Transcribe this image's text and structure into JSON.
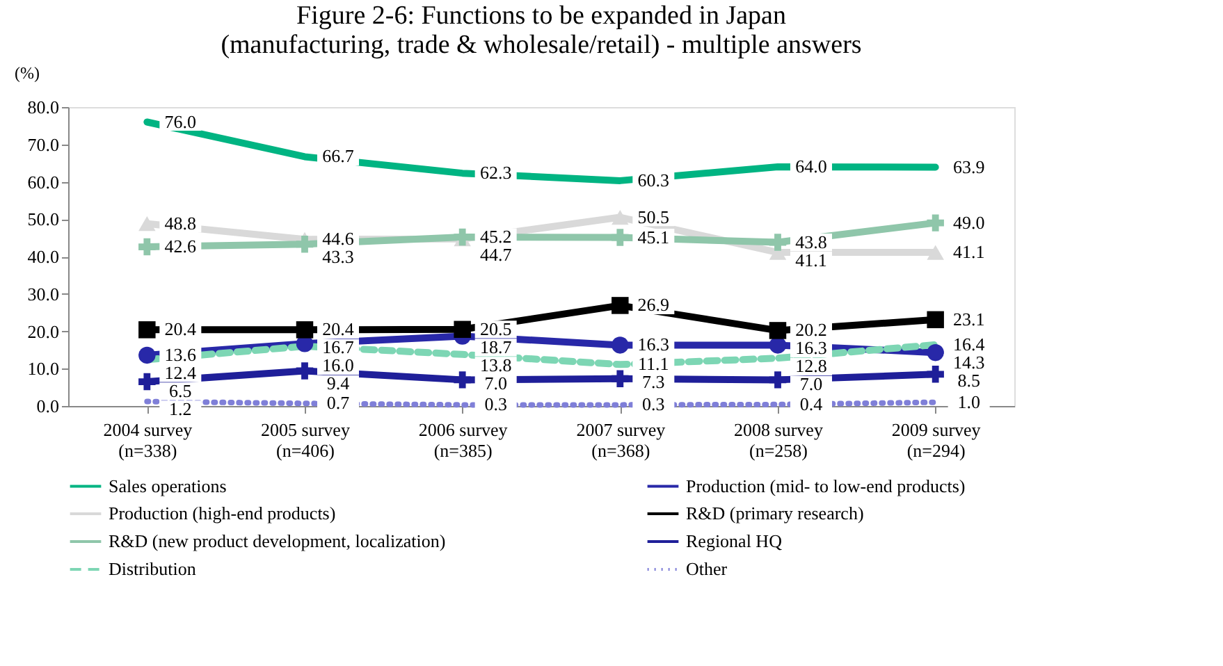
{
  "chart_data": {
    "type": "line",
    "title": [
      "Figure 2-6: Functions to be expanded in Japan",
      "(manufacturing, trade & wholesale/retail) - multiple answers"
    ],
    "ylabel": "(%)",
    "categories": [
      "2004 survey\n(n=338)",
      "2005 survey\n(n=406)",
      "2006 survey\n(n=385)",
      "2007 survey\n(n=368)",
      "2008 survey\n(n=258)",
      "2009 survey\n(n=294)"
    ],
    "series": [
      {
        "name": "Sales operations",
        "color": "#00b482",
        "marker": "none",
        "line_style": "solid",
        "values": [
          76.0,
          66.7,
          62.3,
          60.3,
          64.0,
          63.9
        ],
        "value_labels": [
          "76.0",
          "66.7",
          "62.3",
          "60.3",
          "64.0",
          "63.9"
        ]
      },
      {
        "name": "Production (mid- to low-end products)",
        "color": "#2828a8",
        "marker": "circle",
        "line_style": "solid",
        "values": [
          13.6,
          16.7,
          18.7,
          16.3,
          16.3,
          14.3
        ],
        "value_labels": [
          "13.6",
          "16.7",
          "18.7",
          "16.3",
          "16.3",
          "14.3"
        ]
      },
      {
        "name": "Production (high-end products)",
        "color": "#d9d9d9",
        "marker": "triangle",
        "line_style": "solid",
        "values": [
          48.8,
          44.6,
          44.7,
          50.5,
          41.1,
          41.1
        ],
        "value_labels": [
          "48.8",
          "44.6",
          "44.7",
          "50.5",
          "41.1",
          "41.1"
        ]
      },
      {
        "name": "R&D (primary research)",
        "color": "#000000",
        "marker": "square",
        "line_style": "solid",
        "values": [
          20.4,
          20.4,
          20.5,
          26.9,
          20.2,
          23.1
        ],
        "value_labels": [
          "20.4",
          "20.4",
          "20.5",
          "26.9",
          "20.2",
          "23.1"
        ]
      },
      {
        "name": "R&D (new product development, localization)",
        "color": "#8fc6aa",
        "marker": "cross",
        "line_style": "solid",
        "values": [
          42.6,
          43.3,
          45.2,
          45.1,
          43.8,
          49.0
        ],
        "value_labels": [
          "42.6",
          "43.3",
          "45.2",
          "45.1",
          "43.8",
          "49.0"
        ]
      },
      {
        "name": "Regional HQ",
        "color": "#1f1f99",
        "marker": "cross",
        "line_style": "solid",
        "values": [
          6.5,
          9.4,
          7.0,
          7.3,
          7.0,
          8.5
        ],
        "value_labels": [
          "6.5",
          "9.4",
          "7.0",
          "7.3",
          "7.0",
          "8.5"
        ]
      },
      {
        "name": "Distribution",
        "color": "#7dd6b4",
        "marker": "none",
        "line_style": "dashed",
        "values": [
          12.4,
          16.0,
          13.8,
          11.1,
          12.8,
          16.4
        ],
        "value_labels": [
          "12.4",
          "16.0",
          "13.8",
          "11.1",
          "12.8",
          "16.4"
        ]
      },
      {
        "name": "Other",
        "color": "#7f7fd8",
        "marker": "none",
        "line_style": "dotted",
        "values": [
          1.2,
          0.7,
          0.3,
          0.3,
          0.4,
          1.0
        ],
        "value_labels": [
          "1.2",
          "0.7",
          "0.3",
          "0.3",
          "0.4",
          "1.0"
        ]
      }
    ],
    "ylim": [
      0,
      80
    ],
    "yticks": [
      {
        "value": 0,
        "label": "0.0"
      },
      {
        "value": 10,
        "label": "10.0"
      },
      {
        "value": 20,
        "label": "20.0"
      },
      {
        "value": 30,
        "label": "30.0"
      },
      {
        "value": 40,
        "label": "40.0"
      },
      {
        "value": 50,
        "label": "50.0"
      },
      {
        "value": 60,
        "label": "60.0"
      },
      {
        "value": 70,
        "label": "70.0"
      },
      {
        "value": 80,
        "label": "80.0"
      }
    ],
    "grid": false,
    "legend": "bottom"
  }
}
